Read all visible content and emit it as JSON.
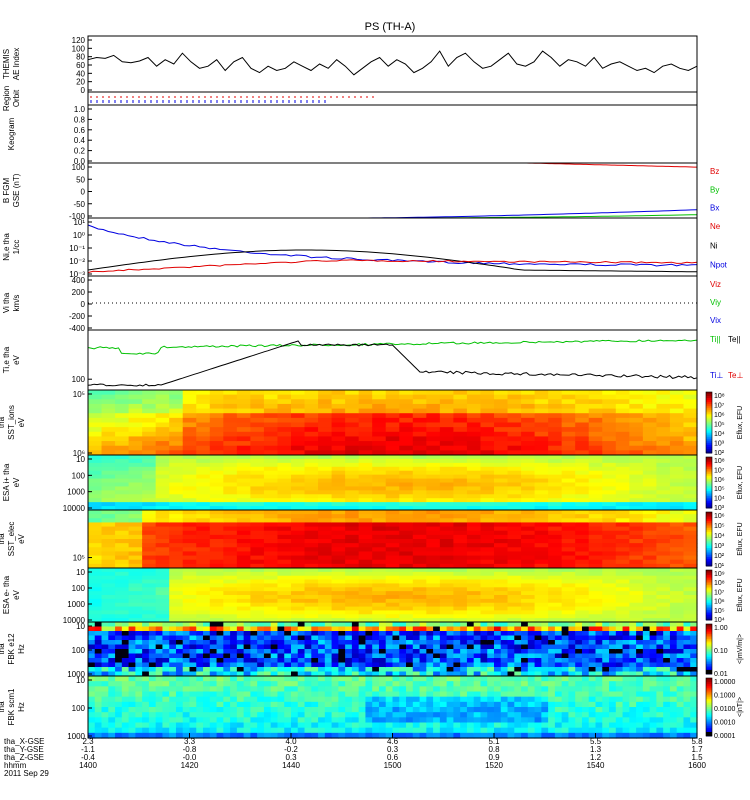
{
  "title": "PS (TH-A)",
  "panels": [
    {
      "id": "ae",
      "ylabel": [
        "THEMIS",
        "AE Index"
      ],
      "yticks": [
        "0",
        "20",
        "40",
        "60",
        "80",
        "100",
        "120"
      ],
      "ylim": [
        0,
        130
      ]
    },
    {
      "id": "region",
      "ylabel": [
        "Region",
        "Orbit"
      ],
      "yticks": []
    },
    {
      "id": "keogram",
      "ylabel": [
        "Keogram"
      ],
      "yticks": [
        "0.0",
        "0.2",
        "0.4",
        "0.6",
        "0.8",
        "1.0"
      ],
      "ylim": [
        0,
        1
      ]
    },
    {
      "id": "bfgm",
      "ylabel": [
        "B FGM",
        "GSE (nT)"
      ],
      "yticks": [
        "-100",
        "-50",
        "0",
        "50",
        "100"
      ],
      "ylim": [
        -100,
        100
      ],
      "legend": [
        "Bz",
        "By",
        "Bx"
      ]
    },
    {
      "id": "density",
      "ylabel": [
        "Ni,e tha",
        "1/cc"
      ],
      "yticks": [
        "10⁻³",
        "10⁻²",
        "10⁻¹",
        "10⁰",
        "10¹"
      ],
      "legend": [
        "Ne",
        "Ni",
        "Npot"
      ]
    },
    {
      "id": "velocity",
      "ylabel": [
        "Vi tha",
        "km/s"
      ],
      "yticks": [
        "-400",
        "-200",
        "0",
        "200",
        "400"
      ],
      "ylim": [
        -450,
        450
      ],
      "legend": [
        "Viz",
        "Viy",
        "Vix"
      ]
    },
    {
      "id": "temp",
      "ylabel": [
        "Ti,e tha",
        "eV"
      ],
      "yticks": [
        "100"
      ],
      "legend_top": [
        "Ti||",
        "Te||"
      ],
      "legend_bot": [
        "Ti⊥",
        "Te⊥"
      ]
    },
    {
      "id": "sst_ions",
      "ylabel": [
        "tha",
        "SST_ions",
        "eV"
      ],
      "yticks": [
        "10⁶",
        "10⁵"
      ],
      "colorbar": {
        "ticks": [
          "10⁸",
          "10⁷",
          "10⁶",
          "10⁵",
          "10⁴",
          "10³",
          "10²"
        ],
        "label": "Eflux, EFU"
      }
    },
    {
      "id": "esa_ions",
      "ylabel": [
        "ESA i+ tha",
        "eV"
      ],
      "yticks": [
        "10000",
        "1000",
        "100",
        "10"
      ],
      "colorbar": {
        "ticks": [
          "10⁸",
          "10⁷",
          "10⁶",
          "10⁵",
          "10⁴",
          "10³"
        ],
        "label": "Eflux, EFU"
      }
    },
    {
      "id": "sst_elec",
      "ylabel": [
        "tha",
        "SST_elec",
        "eV"
      ],
      "yticks": [
        "10⁵"
      ],
      "colorbar": {
        "ticks": [
          "10⁶",
          "10⁵",
          "10⁴",
          "10³",
          "10²",
          "10¹"
        ],
        "label": "Eflux, EFU"
      }
    },
    {
      "id": "esa_elec",
      "ylabel": [
        "ESA e- tha",
        "eV"
      ],
      "yticks": [
        "10000",
        "1000",
        "100",
        "10"
      ],
      "colorbar": {
        "ticks": [
          "10⁹",
          "10⁸",
          "10⁷",
          "10⁶",
          "10⁵",
          "10⁴"
        ],
        "label": "Eflux, EFU"
      }
    },
    {
      "id": "fbk_e",
      "ylabel": [
        "tha",
        "FBK e12",
        "Hz"
      ],
      "yticks": [
        "1000",
        "100",
        "10"
      ],
      "colorbar": {
        "ticks": [
          "1.00",
          "0.10",
          "0.01"
        ],
        "label": "<|mV/m|>"
      }
    },
    {
      "id": "fbk_b",
      "ylabel": [
        "tha",
        "FBK scm1",
        "Hz"
      ],
      "yticks": [
        "1000",
        "100",
        "10"
      ],
      "colorbar": {
        "ticks": [
          "1.0000",
          "0.1000",
          "0.0100",
          "0.0010",
          "0.0001"
        ],
        "label": "<|nT|>"
      }
    }
  ],
  "xaxis": {
    "row_labels": [
      "tha_X-GSE",
      "tha_Y-GSE",
      "tha_Z-GSE",
      "hhmm",
      "2011 Sep 29"
    ],
    "ticks": [
      {
        "x": [
          "2.3",
          "-1.1",
          "-0.4",
          "1400"
        ]
      },
      {
        "x": [
          "3.3",
          "-0.8",
          "-0.0",
          "1420"
        ]
      },
      {
        "x": [
          "4.0",
          "-0.2",
          "0.3",
          "1440"
        ]
      },
      {
        "x": [
          "4.6",
          "0.3",
          "0.6",
          "1500"
        ]
      },
      {
        "x": [
          "5.1",
          "0.8",
          "0.9",
          "1520"
        ]
      },
      {
        "x": [
          "5.5",
          "1.3",
          "1.2",
          "1540"
        ]
      },
      {
        "x": [
          "5.8",
          "1.7",
          "1.5",
          "1600"
        ]
      }
    ]
  },
  "chart_data": {
    "type": "line",
    "title": "PS (TH-A)",
    "x": {
      "label": "hhmm",
      "start": "1400",
      "end": "1600",
      "date": "2011 Sep 29"
    },
    "ae_index": [
      75,
      80,
      78,
      85,
      70,
      68,
      72,
      80,
      60,
      75,
      65,
      90,
      70,
      55,
      60,
      75,
      50,
      70,
      80,
      55,
      45,
      60,
      50,
      55,
      70,
      60,
      50,
      65,
      55,
      75,
      60,
      40,
      55,
      70,
      80,
      60,
      75,
      65,
      45,
      55,
      70,
      95,
      60,
      80,
      90,
      70,
      55,
      60,
      75,
      90,
      65,
      60,
      70,
      95,
      80,
      60,
      75,
      70,
      60,
      80,
      55,
      65,
      70,
      60,
      50,
      55,
      45,
      60,
      65,
      55,
      50,
      60
    ],
    "b_fgm": {
      "bz": {
        "start_fraction": 0.72,
        "end": 85
      },
      "by": {
        "end": -90
      },
      "bx": {
        "end": -70
      }
    },
    "density_series": [
      "Ne",
      "Ni",
      "Npot"
    ],
    "velocity_series": [
      "Viz",
      "Viy",
      "Vix"
    ],
    "temperature_series": [
      "Ti||",
      "Te||",
      "Ti⊥",
      "Te⊥"
    ]
  },
  "colors": {
    "red": "#e00000",
    "green": "#00c000",
    "blue": "#0000e0",
    "black": "#000000"
  }
}
